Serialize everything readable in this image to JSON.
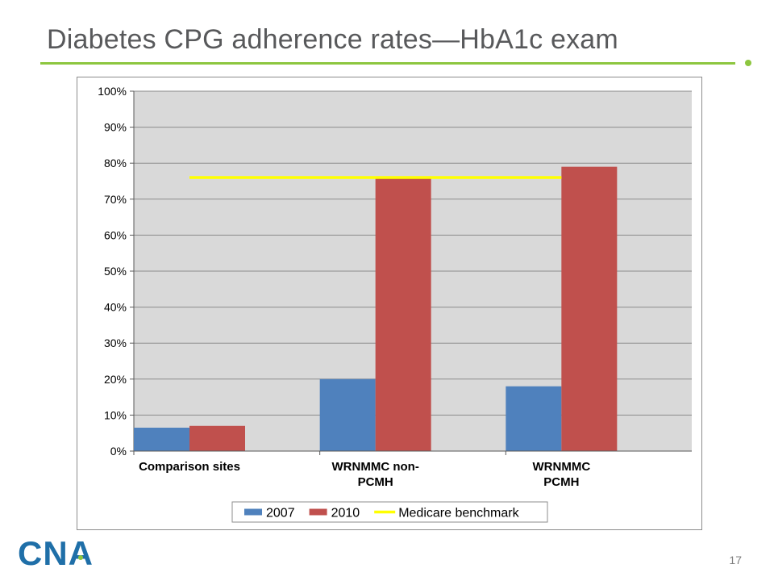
{
  "slide": {
    "title": "Diabetes CPG adherence rates—HbA1c exam",
    "page_number": "17",
    "logo_text": "CNA",
    "colors": {
      "accent_green": "#8dc63f",
      "logo_blue": "#1f6fa8",
      "title_text": "#58595b"
    }
  },
  "chart_data": {
    "type": "bar",
    "categories": [
      [
        "Comparison sites"
      ],
      [
        "WRNMMC non-",
        "PCMH"
      ],
      [
        "WRNMMC",
        "PCMH"
      ]
    ],
    "series": [
      {
        "name": "2007",
        "color": "#4f81bd",
        "values": [
          6.5,
          20,
          18
        ]
      },
      {
        "name": "2010",
        "color": "#c0504d",
        "values": [
          7,
          76,
          79
        ]
      }
    ],
    "benchmark": {
      "name": "Medicare benchmark",
      "color": "#ffff00",
      "value": 76
    },
    "ylim": [
      0,
      100
    ],
    "yticks": [
      "0%",
      "10%",
      "20%",
      "30%",
      "40%",
      "50%",
      "60%",
      "70%",
      "80%",
      "90%",
      "100%"
    ],
    "plot_background": "#d9d9d9",
    "grid": true,
    "legend_position": "bottom"
  }
}
